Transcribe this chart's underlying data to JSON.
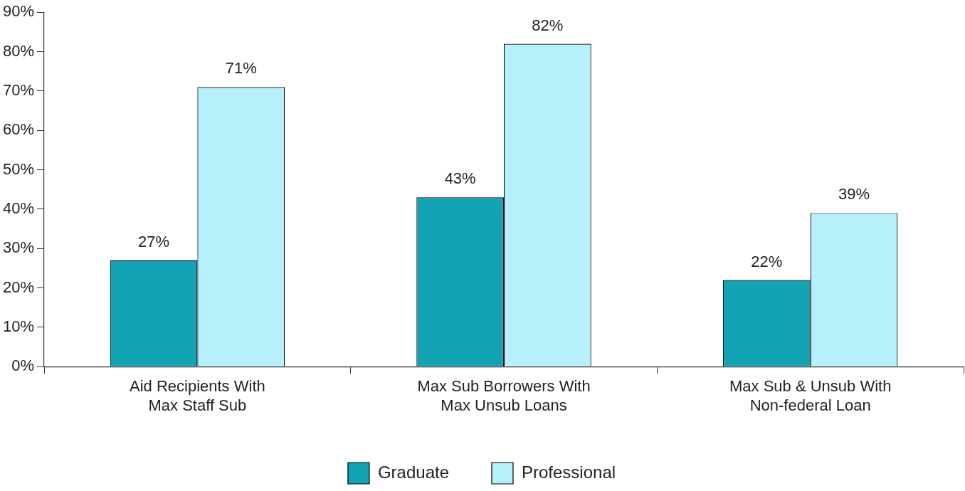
{
  "chart_data": {
    "type": "bar",
    "categories": [
      "Aid Recipients With Max Staff Sub",
      "Max Sub Borrowers With Max Unsub Loans",
      "Max Sub & Unsub With Non-federal Loan"
    ],
    "series": [
      {
        "name": "Graduate",
        "color": "#12a3b5",
        "values": [
          27,
          43,
          22
        ],
        "value_labels": [
          "27%",
          "43%",
          "22%"
        ]
      },
      {
        "name": "Professional",
        "color": "#b5f0fb",
        "values": [
          71,
          82,
          39
        ],
        "value_labels": [
          "71%",
          "82%",
          "39%"
        ]
      }
    ],
    "ylim": [
      0,
      90
    ],
    "yticks": [
      {
        "value": 0,
        "label": "0%"
      },
      {
        "value": 10,
        "label": "10%"
      },
      {
        "value": 20,
        "label": "20%"
      },
      {
        "value": 30,
        "label": "30%"
      },
      {
        "value": 40,
        "label": "40%"
      },
      {
        "value": 50,
        "label": "50%"
      },
      {
        "value": 60,
        "label": "60%"
      },
      {
        "value": 70,
        "label": "70%"
      },
      {
        "value": 80,
        "label": "80%"
      },
      {
        "value": 90,
        "label": "90%"
      }
    ],
    "grid": false,
    "legend": "bottom"
  }
}
